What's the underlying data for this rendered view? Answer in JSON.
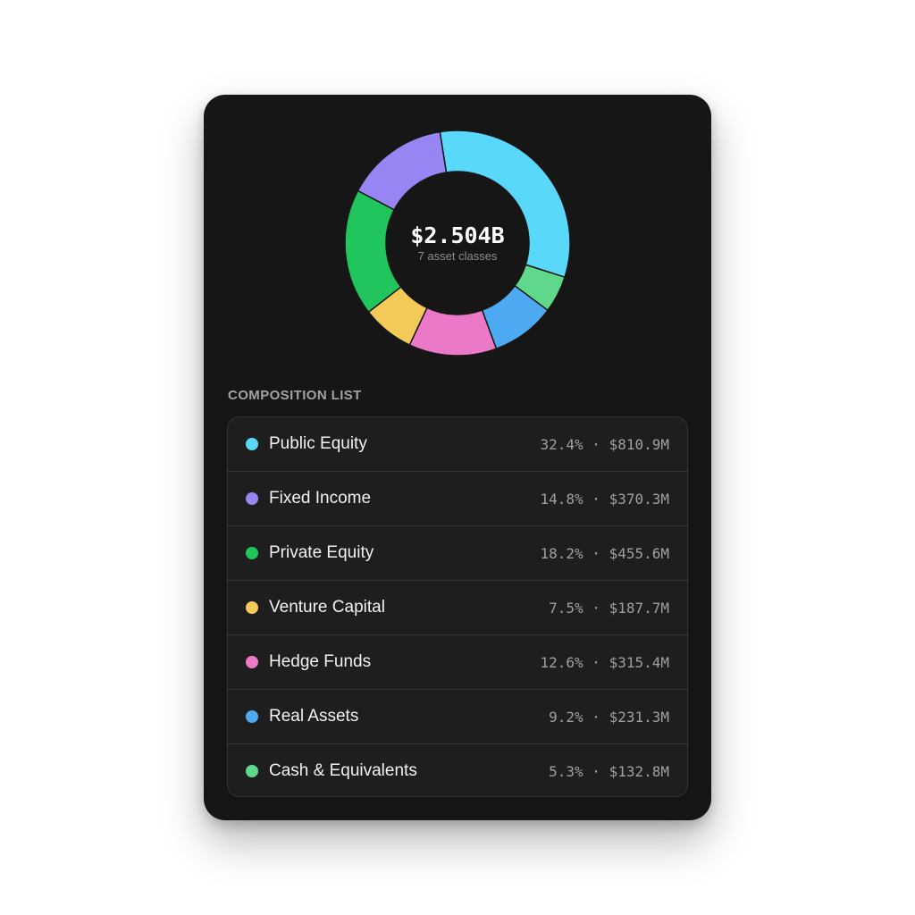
{
  "summary": {
    "total": "$2.504B",
    "subtitle": "7 asset classes"
  },
  "section_title": "COMPOSITION LIST",
  "separator": " · ",
  "chart_data": {
    "type": "pie",
    "series": [
      {
        "name": "Public Equity",
        "percent": 32.4,
        "amount": "$810.9M",
        "color": "#5ad8fa",
        "percent_label": "32.4%"
      },
      {
        "name": "Cash & Equivalents",
        "percent": 5.3,
        "amount": "$132.8M",
        "color": "#5fd88c",
        "percent_label": "5.3%"
      },
      {
        "name": "Real Assets",
        "percent": 9.2,
        "amount": "$231.3M",
        "color": "#4da9f2",
        "percent_label": "9.2%"
      },
      {
        "name": "Hedge Funds",
        "percent": 12.6,
        "amount": "$315.4M",
        "color": "#ec79c8",
        "percent_label": "12.6%"
      },
      {
        "name": "Venture Capital",
        "percent": 7.5,
        "amount": "$187.7M",
        "color": "#f3c957",
        "percent_label": "7.5%"
      },
      {
        "name": "Private Equity",
        "percent": 18.2,
        "amount": "$455.6M",
        "color": "#21c55e",
        "percent_label": "18.2%"
      },
      {
        "name": "Fixed Income",
        "percent": 14.8,
        "amount": "$370.3M",
        "color": "#9685f2",
        "percent_label": "14.8%"
      }
    ],
    "list_order": [
      "Public Equity",
      "Fixed Income",
      "Private Equity",
      "Venture Capital",
      "Hedge Funds",
      "Real Assets",
      "Cash & Equivalents"
    ]
  }
}
